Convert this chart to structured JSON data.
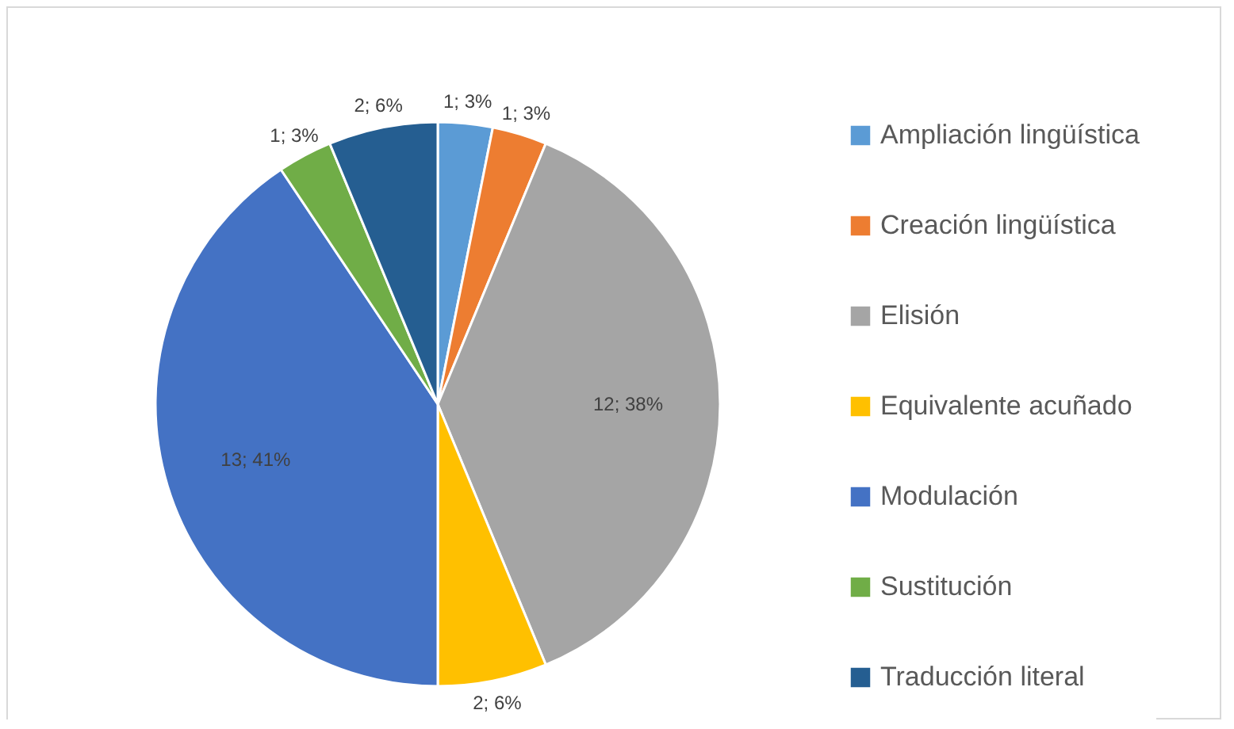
{
  "chart_data": {
    "type": "pie",
    "categories": [
      "Ampliación lingüística",
      "Creación lingüística",
      "Elisión",
      "Equivalente acuñado",
      "Modulación",
      "Sustitución",
      "Traducción literal"
    ],
    "values": [
      1,
      1,
      12,
      2,
      13,
      1,
      2
    ],
    "colors": [
      "#5b9bd5",
      "#ed7d31",
      "#a5a5a5",
      "#ffc000",
      "#4472c4",
      "#70ad47",
      "#255e91"
    ],
    "value_labels": [
      "1; 3%",
      "1; 3%",
      "12; 38%",
      "2; 6%",
      "13; 41%",
      "1; 3%",
      "2; 6%"
    ],
    "legend": "right"
  }
}
